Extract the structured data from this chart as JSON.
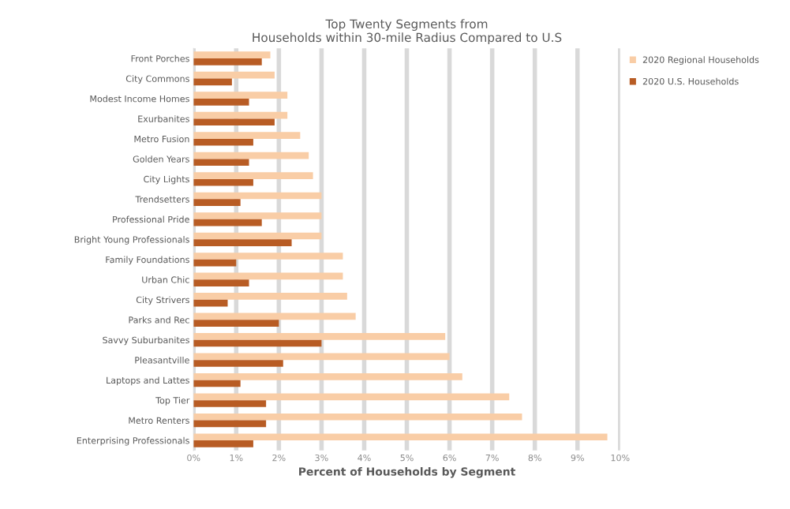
{
  "chart_data": {
    "type": "bar",
    "orientation": "horizontal",
    "title": "Top Twenty Segments from\nHouseholds within 30-mile Radius Compared to U.S",
    "xlabel": "Percent of Households by Segment",
    "categories": [
      "Front Porches",
      "City Commons",
      "Modest Income Homes",
      "Exurbanites",
      "Metro Fusion",
      "Golden Years",
      "City Lights",
      "Trendsetters",
      "Professional Pride",
      "Bright Young Professionals",
      "Family Foundations",
      "Urban Chic",
      "City Strivers",
      "Parks and Rec",
      "Savvy Suburbanites",
      "Pleasantville",
      "Laptops and Lattes",
      "Top Tier",
      "Metro Renters",
      "Enterprising Professionals"
    ],
    "series": [
      {
        "name": "2020 Regional Households",
        "color": "#f9cda6",
        "values": [
          1.8,
          1.9,
          2.2,
          2.2,
          2.5,
          2.7,
          2.8,
          3.0,
          3.0,
          3.0,
          3.5,
          3.5,
          3.6,
          3.8,
          5.9,
          6.0,
          6.3,
          7.4,
          7.7,
          9.7
        ]
      },
      {
        "name": "2020 U.S. Households",
        "color": "#b85c24",
        "values": [
          1.6,
          0.9,
          1.3,
          1.9,
          1.4,
          1.3,
          1.4,
          1.1,
          1.6,
          2.3,
          1.0,
          1.3,
          0.8,
          2.0,
          3.0,
          2.1,
          1.1,
          1.7,
          1.7,
          1.4
        ]
      }
    ],
    "xlim": [
      0,
      10
    ],
    "xticks": [
      {
        "value": 0,
        "label": "0%"
      },
      {
        "value": 1,
        "label": "1%"
      },
      {
        "value": 2,
        "label": "2%"
      },
      {
        "value": 3,
        "label": "3%"
      },
      {
        "value": 4,
        "label": "4%"
      },
      {
        "value": 5,
        "label": "5%"
      },
      {
        "value": 6,
        "label": "6%"
      },
      {
        "value": 7,
        "label": "7%"
      },
      {
        "value": 8,
        "label": "8%"
      },
      {
        "value": 9,
        "label": "9%"
      },
      {
        "value": 10,
        "label": "10%"
      }
    ],
    "grid": "x",
    "legend": "top right"
  }
}
